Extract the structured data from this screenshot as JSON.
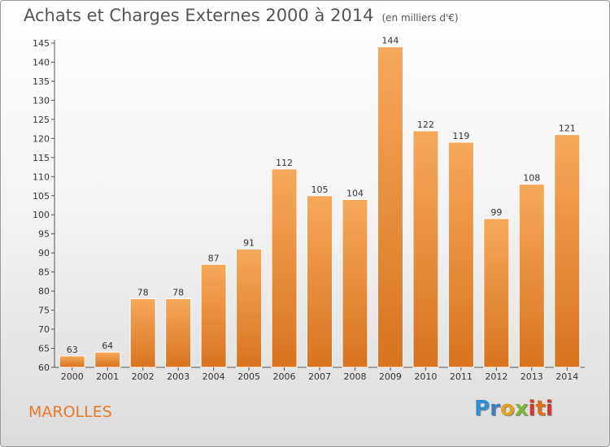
{
  "header": {
    "title": "Achats et Charges Externes 2000 à 2014",
    "subtitle": "(en milliers d'€)"
  },
  "footer": {
    "commune": "MAROLLES",
    "logo_text": "Proxiti"
  },
  "colors": {
    "bar_light": "#f6a95a",
    "bar_dark": "#d9731f",
    "commune_text": "#e8792a"
  },
  "chart_data": {
    "type": "bar",
    "title": "Achats et Charges Externes 2000 à 2014",
    "subtitle": "(en milliers d'€)",
    "xlabel": "",
    "ylabel": "",
    "categories": [
      "2000",
      "2001",
      "2002",
      "2003",
      "2004",
      "2005",
      "2006",
      "2007",
      "2008",
      "2009",
      "2010",
      "2011",
      "2012",
      "2013",
      "2014"
    ],
    "values": [
      63,
      64,
      78,
      78,
      87,
      91,
      112,
      105,
      104,
      144,
      122,
      119,
      99,
      108,
      121
    ],
    "ylim": [
      60,
      145
    ],
    "yticks": [
      60,
      65,
      70,
      75,
      80,
      85,
      90,
      95,
      100,
      105,
      110,
      115,
      120,
      125,
      130,
      135,
      140,
      145
    ],
    "grid": false,
    "data_labels": true
  }
}
